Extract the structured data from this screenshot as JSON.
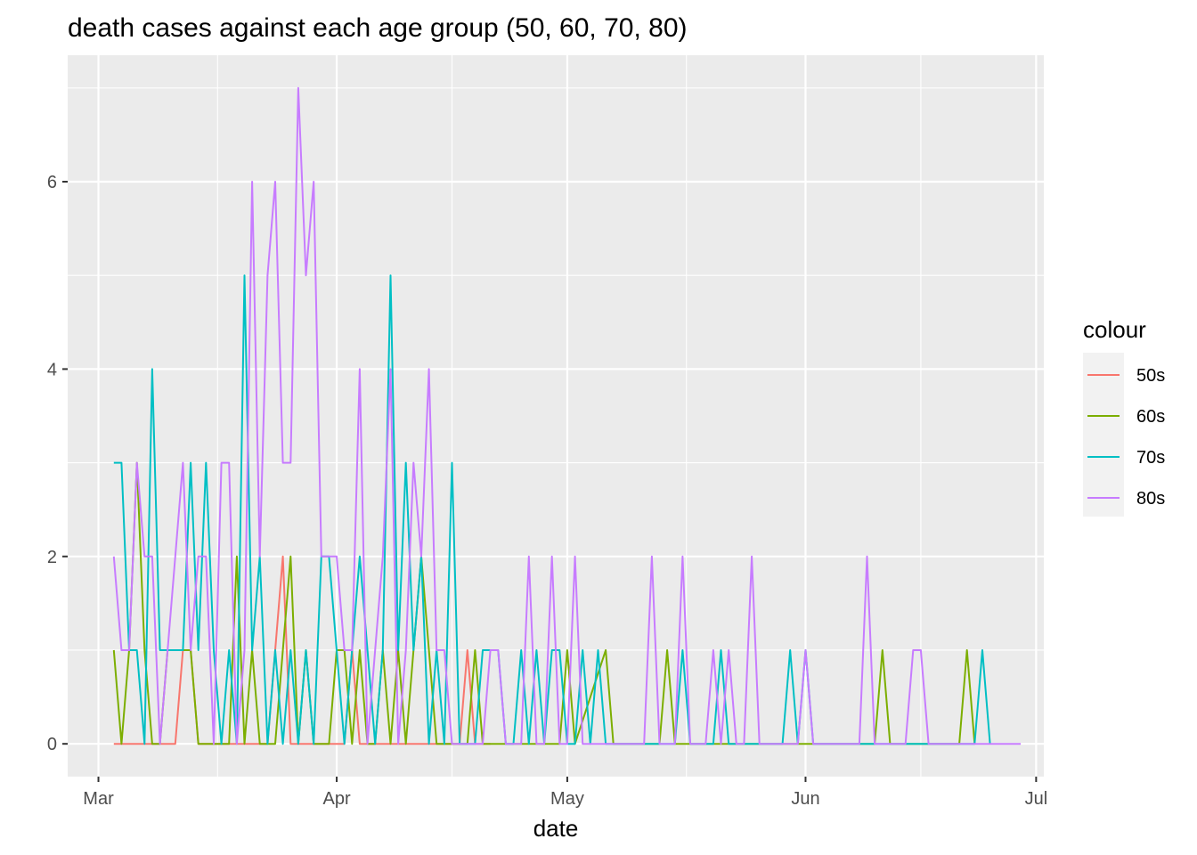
{
  "chart_data": {
    "type": "line",
    "title": "death cases against each age group (50, 60, 70, 80)",
    "xlabel": "date",
    "ylabel": "",
    "x_axis": {
      "kind": "date",
      "range": [
        "2020-02-26",
        "2020-07-02"
      ],
      "ticks": [
        {
          "date": "2020-03-01",
          "label": "Mar"
        },
        {
          "date": "2020-04-01",
          "label": "Apr"
        },
        {
          "date": "2020-05-01",
          "label": "May"
        },
        {
          "date": "2020-06-01",
          "label": "Jun"
        },
        {
          "date": "2020-07-01",
          "label": "Jul"
        }
      ]
    },
    "y_axis": {
      "range": [
        -0.35,
        7.35
      ],
      "ticks": [
        0,
        2,
        4,
        6
      ],
      "tick_labels": [
        "0",
        "2",
        "4",
        "6"
      ]
    },
    "grid": true,
    "legend": {
      "title": "colour",
      "placement": "right",
      "entries": [
        "50s",
        "60s",
        "70s",
        "80s"
      ]
    },
    "series": [
      {
        "name": "50s",
        "color": "#F8766D",
        "points": [
          [
            "2020-03-03",
            0
          ],
          [
            "2020-03-07",
            0
          ],
          [
            "2020-03-08",
            0
          ],
          [
            "2020-03-09",
            0
          ],
          [
            "2020-03-10",
            0
          ],
          [
            "2020-03-11",
            0
          ],
          [
            "2020-03-12",
            1
          ],
          [
            "2020-03-13",
            1
          ],
          [
            "2020-03-14",
            0
          ],
          [
            "2020-03-15",
            0
          ],
          [
            "2020-03-16",
            0
          ],
          [
            "2020-03-17",
            0
          ],
          [
            "2020-03-18",
            0
          ],
          [
            "2020-03-19",
            0
          ],
          [
            "2020-03-20",
            0
          ],
          [
            "2020-03-21",
            0
          ],
          [
            "2020-03-22",
            0
          ],
          [
            "2020-03-23",
            0
          ],
          [
            "2020-03-24",
            1
          ],
          [
            "2020-03-25",
            2
          ],
          [
            "2020-03-26",
            0
          ],
          [
            "2020-03-27",
            0
          ],
          [
            "2020-03-28",
            0
          ],
          [
            "2020-03-29",
            0
          ],
          [
            "2020-03-30",
            0
          ],
          [
            "2020-03-31",
            0
          ],
          [
            "2020-04-01",
            0
          ],
          [
            "2020-04-02",
            0
          ],
          [
            "2020-04-03",
            1
          ],
          [
            "2020-04-04",
            0
          ],
          [
            "2020-04-05",
            0
          ],
          [
            "2020-04-06",
            0
          ],
          [
            "2020-04-07",
            0
          ],
          [
            "2020-04-08",
            0
          ],
          [
            "2020-04-09",
            0
          ],
          [
            "2020-04-10",
            0
          ],
          [
            "2020-04-11",
            0
          ],
          [
            "2020-04-12",
            0
          ],
          [
            "2020-04-13",
            0
          ],
          [
            "2020-04-14",
            0
          ],
          [
            "2020-04-15",
            0
          ],
          [
            "2020-04-16",
            0
          ],
          [
            "2020-04-17",
            0
          ],
          [
            "2020-04-18",
            1
          ],
          [
            "2020-04-19",
            0
          ],
          [
            "2020-04-20",
            0
          ],
          [
            "2020-04-21",
            0
          ]
        ]
      },
      {
        "name": "60s",
        "color": "#7CAE00",
        "points": [
          [
            "2020-03-03",
            1
          ],
          [
            "2020-03-04",
            0
          ],
          [
            "2020-03-05",
            1
          ],
          [
            "2020-03-06",
            3
          ],
          [
            "2020-03-07",
            1
          ],
          [
            "2020-03-08",
            0
          ],
          [
            "2020-03-09",
            0
          ],
          [
            "2020-03-10",
            1
          ],
          [
            "2020-03-11",
            1
          ],
          [
            "2020-03-12",
            1
          ],
          [
            "2020-03-13",
            1
          ],
          [
            "2020-03-14",
            0
          ],
          [
            "2020-03-15",
            0
          ],
          [
            "2020-03-16",
            0
          ],
          [
            "2020-03-17",
            0
          ],
          [
            "2020-03-18",
            0
          ],
          [
            "2020-03-19",
            2
          ],
          [
            "2020-03-20",
            0
          ],
          [
            "2020-03-21",
            1
          ],
          [
            "2020-03-22",
            0
          ],
          [
            "2020-03-23",
            0
          ],
          [
            "2020-03-24",
            0
          ],
          [
            "2020-03-25",
            1
          ],
          [
            "2020-03-26",
            2
          ],
          [
            "2020-03-27",
            0
          ],
          [
            "2020-03-28",
            1
          ],
          [
            "2020-03-29",
            0
          ],
          [
            "2020-03-30",
            0
          ],
          [
            "2020-03-31",
            0
          ],
          [
            "2020-04-01",
            1
          ],
          [
            "2020-04-02",
            1
          ],
          [
            "2020-04-03",
            0
          ],
          [
            "2020-04-04",
            1
          ],
          [
            "2020-04-05",
            0
          ],
          [
            "2020-04-06",
            0
          ],
          [
            "2020-04-07",
            1
          ],
          [
            "2020-04-08",
            0
          ],
          [
            "2020-04-09",
            1
          ],
          [
            "2020-04-10",
            0
          ],
          [
            "2020-04-11",
            1
          ],
          [
            "2020-04-12",
            2
          ],
          [
            "2020-04-13",
            1
          ],
          [
            "2020-04-14",
            0
          ],
          [
            "2020-04-15",
            0
          ],
          [
            "2020-04-16",
            0
          ],
          [
            "2020-04-17",
            0
          ],
          [
            "2020-04-18",
            0
          ],
          [
            "2020-04-19",
            1
          ],
          [
            "2020-04-20",
            0
          ],
          [
            "2020-04-21",
            0
          ],
          [
            "2020-04-30",
            0
          ],
          [
            "2020-05-01",
            1
          ],
          [
            "2020-05-02",
            0
          ],
          [
            "2020-05-06",
            1
          ],
          [
            "2020-05-07",
            0
          ],
          [
            "2020-05-13",
            0
          ],
          [
            "2020-05-14",
            1
          ],
          [
            "2020-05-15",
            0
          ],
          [
            "2020-06-10",
            0
          ],
          [
            "2020-06-11",
            1
          ],
          [
            "2020-06-12",
            0
          ],
          [
            "2020-06-21",
            0
          ],
          [
            "2020-06-22",
            1
          ],
          [
            "2020-06-23",
            0
          ]
        ]
      },
      {
        "name": "70s",
        "color": "#00BFC4",
        "points": [
          [
            "2020-03-03",
            3
          ],
          [
            "2020-03-04",
            3
          ],
          [
            "2020-03-05",
            1
          ],
          [
            "2020-03-06",
            1
          ],
          [
            "2020-03-07",
            0
          ],
          [
            "2020-03-08",
            4
          ],
          [
            "2020-03-09",
            1
          ],
          [
            "2020-03-10",
            1
          ],
          [
            "2020-03-11",
            1
          ],
          [
            "2020-03-12",
            1
          ],
          [
            "2020-03-13",
            3
          ],
          [
            "2020-03-14",
            1
          ],
          [
            "2020-03-15",
            3
          ],
          [
            "2020-03-16",
            1
          ],
          [
            "2020-03-17",
            0
          ],
          [
            "2020-03-18",
            1
          ],
          [
            "2020-03-19",
            0
          ],
          [
            "2020-03-20",
            5
          ],
          [
            "2020-03-21",
            1
          ],
          [
            "2020-03-22",
            2
          ],
          [
            "2020-03-23",
            0
          ],
          [
            "2020-03-24",
            1
          ],
          [
            "2020-03-25",
            0
          ],
          [
            "2020-03-26",
            1
          ],
          [
            "2020-03-27",
            0
          ],
          [
            "2020-03-28",
            1
          ],
          [
            "2020-03-29",
            0
          ],
          [
            "2020-03-30",
            2
          ],
          [
            "2020-03-31",
            2
          ],
          [
            "2020-04-01",
            1
          ],
          [
            "2020-04-02",
            0
          ],
          [
            "2020-04-03",
            1
          ],
          [
            "2020-04-04",
            2
          ],
          [
            "2020-04-05",
            1
          ],
          [
            "2020-04-06",
            0
          ],
          [
            "2020-04-07",
            1
          ],
          [
            "2020-04-08",
            5
          ],
          [
            "2020-04-09",
            1
          ],
          [
            "2020-04-10",
            3
          ],
          [
            "2020-04-11",
            1
          ],
          [
            "2020-04-12",
            2
          ],
          [
            "2020-04-13",
            0
          ],
          [
            "2020-04-14",
            1
          ],
          [
            "2020-04-15",
            0
          ],
          [
            "2020-04-16",
            3
          ],
          [
            "2020-04-17",
            0
          ],
          [
            "2020-04-18",
            0
          ],
          [
            "2020-04-19",
            0
          ],
          [
            "2020-04-20",
            1
          ],
          [
            "2020-04-21",
            1
          ],
          [
            "2020-04-22",
            1
          ],
          [
            "2020-04-23",
            0
          ],
          [
            "2020-04-24",
            0
          ],
          [
            "2020-04-25",
            1
          ],
          [
            "2020-04-26",
            0
          ],
          [
            "2020-04-27",
            1
          ],
          [
            "2020-04-28",
            0
          ],
          [
            "2020-04-29",
            1
          ],
          [
            "2020-04-30",
            1
          ],
          [
            "2020-05-01",
            0
          ],
          [
            "2020-05-02",
            0
          ],
          [
            "2020-05-03",
            1
          ],
          [
            "2020-05-04",
            0
          ],
          [
            "2020-05-05",
            1
          ],
          [
            "2020-05-06",
            0
          ],
          [
            "2020-05-15",
            0
          ],
          [
            "2020-05-16",
            1
          ],
          [
            "2020-05-17",
            0
          ],
          [
            "2020-05-20",
            0
          ],
          [
            "2020-05-21",
            1
          ],
          [
            "2020-05-22",
            0
          ],
          [
            "2020-05-29",
            0
          ],
          [
            "2020-05-30",
            1
          ],
          [
            "2020-05-31",
            0
          ],
          [
            "2020-06-01",
            1
          ],
          [
            "2020-06-02",
            0
          ],
          [
            "2020-06-23",
            0
          ],
          [
            "2020-06-24",
            1
          ],
          [
            "2020-06-25",
            0
          ]
        ]
      },
      {
        "name": "80s",
        "color": "#C77CFF",
        "points": [
          [
            "2020-03-03",
            2
          ],
          [
            "2020-03-04",
            1
          ],
          [
            "2020-03-05",
            1
          ],
          [
            "2020-03-06",
            3
          ],
          [
            "2020-03-07",
            2
          ],
          [
            "2020-03-08",
            2
          ],
          [
            "2020-03-09",
            0
          ],
          [
            "2020-03-10",
            1
          ],
          [
            "2020-03-11",
            2
          ],
          [
            "2020-03-12",
            3
          ],
          [
            "2020-03-13",
            1
          ],
          [
            "2020-03-14",
            2
          ],
          [
            "2020-03-15",
            2
          ],
          [
            "2020-03-16",
            0
          ],
          [
            "2020-03-17",
            3
          ],
          [
            "2020-03-18",
            3
          ],
          [
            "2020-03-19",
            0
          ],
          [
            "2020-03-20",
            1
          ],
          [
            "2020-03-21",
            6
          ],
          [
            "2020-03-22",
            2
          ],
          [
            "2020-03-23",
            5
          ],
          [
            "2020-03-24",
            6
          ],
          [
            "2020-03-25",
            3
          ],
          [
            "2020-03-26",
            3
          ],
          [
            "2020-03-27",
            7
          ],
          [
            "2020-03-28",
            5
          ],
          [
            "2020-03-29",
            6
          ],
          [
            "2020-03-30",
            2
          ],
          [
            "2020-03-31",
            2
          ],
          [
            "2020-04-01",
            2
          ],
          [
            "2020-04-02",
            1
          ],
          [
            "2020-04-03",
            1
          ],
          [
            "2020-04-04",
            4
          ],
          [
            "2020-04-05",
            0
          ],
          [
            "2020-04-06",
            1
          ],
          [
            "2020-04-07",
            2
          ],
          [
            "2020-04-08",
            4
          ],
          [
            "2020-04-09",
            0
          ],
          [
            "2020-04-10",
            1
          ],
          [
            "2020-04-11",
            3
          ],
          [
            "2020-04-12",
            2
          ],
          [
            "2020-04-13",
            4
          ],
          [
            "2020-04-14",
            1
          ],
          [
            "2020-04-15",
            1
          ],
          [
            "2020-04-16",
            0
          ],
          [
            "2020-04-17",
            0
          ],
          [
            "2020-04-18",
            0
          ],
          [
            "2020-04-19",
            0
          ],
          [
            "2020-04-20",
            0
          ],
          [
            "2020-04-21",
            1
          ],
          [
            "2020-04-22",
            1
          ],
          [
            "2020-04-23",
            0
          ],
          [
            "2020-04-24",
            0
          ],
          [
            "2020-04-25",
            0
          ],
          [
            "2020-04-26",
            2
          ],
          [
            "2020-04-27",
            0
          ],
          [
            "2020-04-28",
            0
          ],
          [
            "2020-04-29",
            2
          ],
          [
            "2020-04-30",
            0
          ],
          [
            "2020-05-01",
            0
          ],
          [
            "2020-05-02",
            2
          ],
          [
            "2020-05-03",
            0
          ],
          [
            "2020-05-11",
            0
          ],
          [
            "2020-05-12",
            2
          ],
          [
            "2020-05-13",
            0
          ],
          [
            "2020-05-15",
            0
          ],
          [
            "2020-05-16",
            2
          ],
          [
            "2020-05-17",
            0
          ],
          [
            "2020-05-19",
            0
          ],
          [
            "2020-05-20",
            1
          ],
          [
            "2020-05-21",
            0
          ],
          [
            "2020-05-22",
            1
          ],
          [
            "2020-05-23",
            0
          ],
          [
            "2020-05-24",
            0
          ],
          [
            "2020-05-25",
            2
          ],
          [
            "2020-05-26",
            0
          ],
          [
            "2020-05-31",
            0
          ],
          [
            "2020-06-01",
            1
          ],
          [
            "2020-06-02",
            0
          ],
          [
            "2020-06-08",
            0
          ],
          [
            "2020-06-09",
            2
          ],
          [
            "2020-06-10",
            0
          ],
          [
            "2020-06-14",
            0
          ],
          [
            "2020-06-15",
            1
          ],
          [
            "2020-06-16",
            1
          ],
          [
            "2020-06-17",
            0
          ],
          [
            "2020-06-29",
            0
          ]
        ]
      }
    ]
  }
}
